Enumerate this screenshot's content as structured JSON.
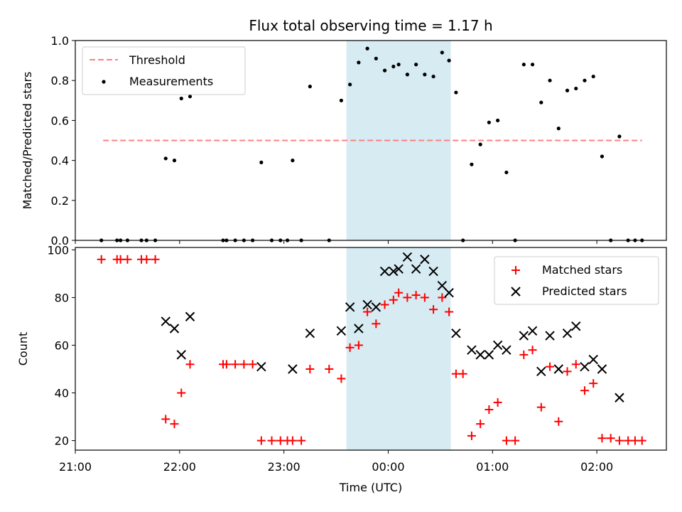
{
  "chart_data": [
    {
      "type": "scatter",
      "title": "Flux total observing time = 1.17 h",
      "ylabel": "Matched/Predicted stars",
      "xlabel": "",
      "ylim": [
        0,
        1.0
      ],
      "yticks": [
        "0.0",
        "0.2",
        "0.4",
        "0.6",
        "0.8",
        "1.0"
      ],
      "legend_position": "top-left",
      "shaded_interval": [
        "23:36",
        "00:36"
      ],
      "threshold": {
        "name": "Threshold",
        "value": 0.5,
        "x_range": [
          "21:16",
          "02:26"
        ],
        "color": "#ff8080",
        "style": "dashed"
      },
      "series": [
        {
          "name": "Measurements",
          "color": "#000000",
          "marker": "dot",
          "points": [
            [
              "21:15",
              0.0
            ],
            [
              "21:24",
              0.0
            ],
            [
              "21:26",
              0.0
            ],
            [
              "21:30",
              0.0
            ],
            [
              "21:38",
              0.0
            ],
            [
              "21:41",
              0.0
            ],
            [
              "21:46",
              0.0
            ],
            [
              "21:52",
              0.41
            ],
            [
              "21:57",
              0.4
            ],
            [
              "22:01",
              0.71
            ],
            [
              "22:06",
              0.72
            ],
            [
              "22:25",
              0.0
            ],
            [
              "22:27",
              0.0
            ],
            [
              "22:32",
              0.0
            ],
            [
              "22:37",
              0.0
            ],
            [
              "22:42",
              0.0
            ],
            [
              "22:47",
              0.39
            ],
            [
              "22:53",
              0.0
            ],
            [
              "22:58",
              0.0
            ],
            [
              "23:02",
              0.0
            ],
            [
              "23:05",
              0.4
            ],
            [
              "23:10",
              0.0
            ],
            [
              "23:15",
              0.77
            ],
            [
              "23:26",
              0.0
            ],
            [
              "23:33",
              0.7
            ],
            [
              "23:38",
              0.78
            ],
            [
              "23:43",
              0.89
            ],
            [
              "23:48",
              0.96
            ],
            [
              "23:53",
              0.91
            ],
            [
              "23:58",
              0.85
            ],
            [
              "00:03",
              0.87
            ],
            [
              "00:06",
              0.88
            ],
            [
              "00:11",
              0.83
            ],
            [
              "00:16",
              0.88
            ],
            [
              "00:21",
              0.83
            ],
            [
              "00:26",
              0.82
            ],
            [
              "00:31",
              0.94
            ],
            [
              "00:35",
              0.9
            ],
            [
              "00:39",
              0.74
            ],
            [
              "00:43",
              0.0
            ],
            [
              "00:48",
              0.38
            ],
            [
              "00:53",
              0.48
            ],
            [
              "00:58",
              0.59
            ],
            [
              "01:03",
              0.6
            ],
            [
              "01:08",
              0.34
            ],
            [
              "01:13",
              0.0
            ],
            [
              "01:18",
              0.88
            ],
            [
              "01:23",
              0.88
            ],
            [
              "01:28",
              0.69
            ],
            [
              "01:33",
              0.8
            ],
            [
              "01:38",
              0.56
            ],
            [
              "01:43",
              0.75
            ],
            [
              "01:48",
              0.76
            ],
            [
              "01:53",
              0.8
            ],
            [
              "01:58",
              0.82
            ],
            [
              "02:03",
              0.42
            ],
            [
              "02:08",
              0.0
            ],
            [
              "02:13",
              0.52
            ],
            [
              "02:18",
              0.0
            ],
            [
              "02:22",
              0.0
            ],
            [
              "02:26",
              0.0
            ]
          ]
        }
      ]
    },
    {
      "type": "scatter",
      "title": "",
      "ylabel": "Count",
      "xlabel": "Time (UTC)",
      "ylim": [
        16,
        101
      ],
      "yticks": [
        "20",
        "40",
        "60",
        "80",
        "100"
      ],
      "xticks": [
        "21:00",
        "22:00",
        "23:00",
        "00:00",
        "01:00",
        "02:00"
      ],
      "legend_position": "top-right",
      "shaded_interval": [
        "23:36",
        "00:36"
      ],
      "series": [
        {
          "name": "Matched stars",
          "color": "#ff0000",
          "marker": "plus",
          "points": [
            [
              "21:15",
              96
            ],
            [
              "21:24",
              96
            ],
            [
              "21:26",
              96
            ],
            [
              "21:30",
              96
            ],
            [
              "21:38",
              96
            ],
            [
              "21:41",
              96
            ],
            [
              "21:46",
              96
            ],
            [
              "21:52",
              29
            ],
            [
              "21:57",
              27
            ],
            [
              "22:01",
              40
            ],
            [
              "22:06",
              52
            ],
            [
              "22:25",
              52
            ],
            [
              "22:27",
              52
            ],
            [
              "22:32",
              52
            ],
            [
              "22:37",
              52
            ],
            [
              "22:42",
              52
            ],
            [
              "22:47",
              20
            ],
            [
              "22:53",
              20
            ],
            [
              "22:58",
              20
            ],
            [
              "23:02",
              20
            ],
            [
              "23:05",
              20
            ],
            [
              "23:10",
              20
            ],
            [
              "23:15",
              50
            ],
            [
              "23:26",
              50
            ],
            [
              "23:33",
              46
            ],
            [
              "23:38",
              59
            ],
            [
              "23:43",
              60
            ],
            [
              "23:48",
              74
            ],
            [
              "23:53",
              69
            ],
            [
              "23:58",
              77
            ],
            [
              "00:03",
              79
            ],
            [
              "00:06",
              82
            ],
            [
              "00:11",
              80
            ],
            [
              "00:16",
              81
            ],
            [
              "00:21",
              80
            ],
            [
              "00:26",
              75
            ],
            [
              "00:31",
              80
            ],
            [
              "00:35",
              74
            ],
            [
              "00:39",
              48
            ],
            [
              "00:43",
              48
            ],
            [
              "00:48",
              22
            ],
            [
              "00:53",
              27
            ],
            [
              "00:58",
              33
            ],
            [
              "01:03",
              36
            ],
            [
              "01:08",
              20
            ],
            [
              "01:13",
              20
            ],
            [
              "01:18",
              56
            ],
            [
              "01:23",
              58
            ],
            [
              "01:28",
              34
            ],
            [
              "01:33",
              51
            ],
            [
              "01:38",
              28
            ],
            [
              "01:43",
              49
            ],
            [
              "01:48",
              52
            ],
            [
              "01:53",
              41
            ],
            [
              "01:58",
              44
            ],
            [
              "02:03",
              21
            ],
            [
              "02:08",
              21
            ],
            [
              "02:13",
              20
            ],
            [
              "02:18",
              20
            ],
            [
              "02:22",
              20
            ],
            [
              "02:26",
              20
            ]
          ]
        },
        {
          "name": "Predicted stars",
          "color": "#000000",
          "marker": "x",
          "points": [
            [
              "21:52",
              70
            ],
            [
              "21:57",
              67
            ],
            [
              "22:01",
              56
            ],
            [
              "22:06",
              72
            ],
            [
              "22:47",
              51
            ],
            [
              "23:05",
              50
            ],
            [
              "23:15",
              65
            ],
            [
              "23:33",
              66
            ],
            [
              "23:38",
              76
            ],
            [
              "23:43",
              67
            ],
            [
              "23:48",
              77
            ],
            [
              "23:53",
              76
            ],
            [
              "23:58",
              91
            ],
            [
              "00:03",
              91
            ],
            [
              "00:06",
              92
            ],
            [
              "00:11",
              97
            ],
            [
              "00:16",
              92
            ],
            [
              "00:21",
              96
            ],
            [
              "00:26",
              91
            ],
            [
              "00:31",
              85
            ],
            [
              "00:35",
              82
            ],
            [
              "00:39",
              65
            ],
            [
              "00:48",
              58
            ],
            [
              "00:53",
              56
            ],
            [
              "00:58",
              56
            ],
            [
              "01:03",
              60
            ],
            [
              "01:08",
              58
            ],
            [
              "01:18",
              64
            ],
            [
              "01:23",
              66
            ],
            [
              "01:28",
              49
            ],
            [
              "01:33",
              64
            ],
            [
              "01:38",
              50
            ],
            [
              "01:43",
              65
            ],
            [
              "01:48",
              68
            ],
            [
              "01:53",
              51
            ],
            [
              "01:58",
              54
            ],
            [
              "02:03",
              50
            ],
            [
              "02:13",
              38
            ]
          ]
        }
      ]
    }
  ]
}
